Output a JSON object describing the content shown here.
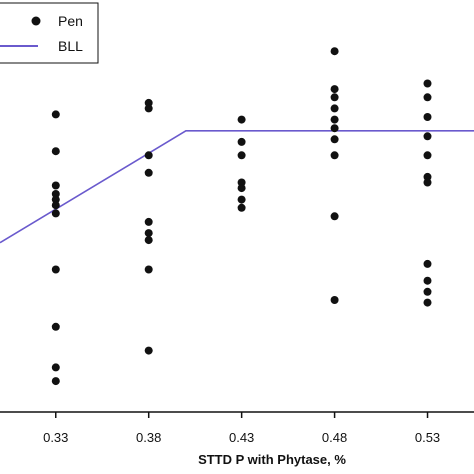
{
  "chart_data": {
    "type": "scatter",
    "xlabel": "STTD P with Phytase, %",
    "ylabel": "",
    "x_ticks": [
      "0.33",
      "0.38",
      "0.43",
      "0.48",
      "0.53"
    ],
    "xlim": [
      0.3,
      0.555
    ],
    "ylim": [
      0,
      100
    ],
    "grid": false,
    "legend": {
      "placement": "top-left",
      "entries": [
        "Pen",
        "BLL"
      ]
    },
    "colors": {
      "pen": "#111111",
      "bll": "#6a5acd"
    },
    "series": [
      {
        "name": "Pen",
        "kind": "points",
        "points": [
          {
            "x": 0.33,
            "y": 80.0
          },
          {
            "x": 0.33,
            "y": 70.1
          },
          {
            "x": 0.33,
            "y": 60.9
          },
          {
            "x": 0.33,
            "y": 58.6
          },
          {
            "x": 0.33,
            "y": 57.1
          },
          {
            "x": 0.33,
            "y": 55.6
          },
          {
            "x": 0.33,
            "y": 53.4
          },
          {
            "x": 0.33,
            "y": 38.3
          },
          {
            "x": 0.33,
            "y": 22.9
          },
          {
            "x": 0.33,
            "y": 12.0
          },
          {
            "x": 0.33,
            "y": 8.3
          },
          {
            "x": 0.38,
            "y": 83.1
          },
          {
            "x": 0.38,
            "y": 81.6
          },
          {
            "x": 0.38,
            "y": 69.0
          },
          {
            "x": 0.38,
            "y": 64.3
          },
          {
            "x": 0.38,
            "y": 51.1
          },
          {
            "x": 0.38,
            "y": 48.1
          },
          {
            "x": 0.38,
            "y": 46.2
          },
          {
            "x": 0.38,
            "y": 38.3
          },
          {
            "x": 0.38,
            "y": 16.5
          },
          {
            "x": 0.43,
            "y": 78.6
          },
          {
            "x": 0.43,
            "y": 72.6
          },
          {
            "x": 0.43,
            "y": 69.0
          },
          {
            "x": 0.43,
            "y": 61.7
          },
          {
            "x": 0.43,
            "y": 60.2
          },
          {
            "x": 0.43,
            "y": 57.1
          },
          {
            "x": 0.43,
            "y": 54.9
          },
          {
            "x": 0.48,
            "y": 97.0
          },
          {
            "x": 0.48,
            "y": 86.8
          },
          {
            "x": 0.48,
            "y": 84.6
          },
          {
            "x": 0.48,
            "y": 81.6
          },
          {
            "x": 0.48,
            "y": 78.6
          },
          {
            "x": 0.48,
            "y": 76.3
          },
          {
            "x": 0.48,
            "y": 73.3
          },
          {
            "x": 0.48,
            "y": 69.0
          },
          {
            "x": 0.48,
            "y": 52.6
          },
          {
            "x": 0.48,
            "y": 30.1
          },
          {
            "x": 0.53,
            "y": 88.3
          },
          {
            "x": 0.53,
            "y": 84.6
          },
          {
            "x": 0.53,
            "y": 79.3
          },
          {
            "x": 0.53,
            "y": 74.1
          },
          {
            "x": 0.53,
            "y": 69.0
          },
          {
            "x": 0.53,
            "y": 63.2
          },
          {
            "x": 0.53,
            "y": 61.7
          },
          {
            "x": 0.53,
            "y": 39.8
          },
          {
            "x": 0.53,
            "y": 35.3
          },
          {
            "x": 0.53,
            "y": 32.3
          },
          {
            "x": 0.53,
            "y": 29.4
          }
        ]
      },
      {
        "name": "BLL",
        "kind": "line",
        "points": [
          {
            "x": 0.3,
            "y": 45.5
          },
          {
            "x": 0.4,
            "y": 75.6
          },
          {
            "x": 0.555,
            "y": 75.6
          }
        ]
      }
    ]
  }
}
